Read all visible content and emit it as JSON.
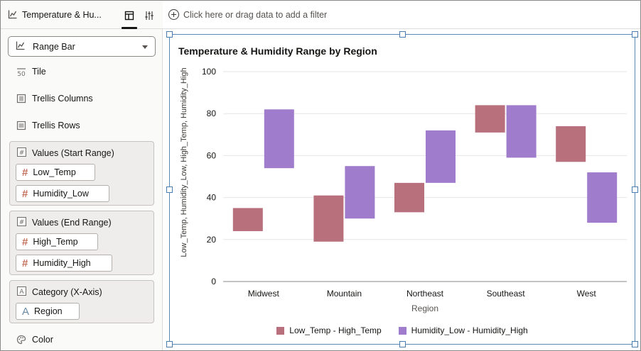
{
  "workspace": {
    "title": "Temperature & Hu...",
    "chart_type": "Range Bar"
  },
  "panel": {
    "props": [
      "Tile",
      "Trellis Columns",
      "Trellis Rows"
    ],
    "groups": [
      {
        "title": "Values (Start Range)",
        "fields": [
          "Low_Temp",
          "Humidity_Low"
        ]
      },
      {
        "title": "Values (End Range)",
        "fields": [
          "High_Temp",
          "Humidity_High"
        ]
      },
      {
        "title": "Category (X-Axis)",
        "fields": [
          "Region"
        ]
      }
    ],
    "color_label": "Color"
  },
  "filter_bar": {
    "placeholder": "Click here or drag data to add a filter"
  },
  "colors": {
    "temp": "#b8707c",
    "humidity": "#a07ccc"
  },
  "chart_data": {
    "type": "bar",
    "subtype": "range",
    "title": "Temperature & Humidity Range by Region",
    "xlabel": "Region",
    "ylabel": "Low_Temp, Humidity_Low, High_Temp, Humidity_High",
    "ylim": [
      0,
      100
    ],
    "yticks": [
      0,
      20,
      40,
      60,
      80,
      100
    ],
    "grid": true,
    "legend_position": "bottom",
    "categories": [
      "Midwest",
      "Mountain",
      "Northeast",
      "Southeast",
      "West"
    ],
    "series": [
      {
        "name": "Low_Temp - High_Temp",
        "low": [
          24,
          19,
          33,
          71,
          57
        ],
        "high": [
          35,
          41,
          47,
          84,
          74
        ]
      },
      {
        "name": "Humidity_Low - Humidity_High",
        "low": [
          54,
          30,
          47,
          59,
          28
        ],
        "high": [
          82,
          55,
          72,
          84,
          52
        ]
      }
    ]
  }
}
